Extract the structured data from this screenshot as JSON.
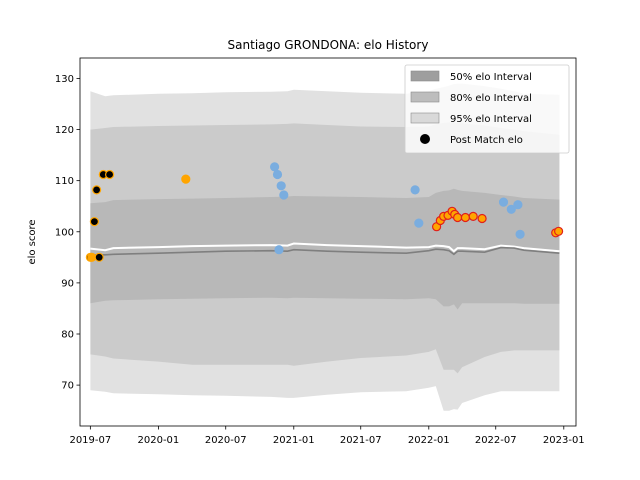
{
  "chart_data": {
    "type": "area",
    "title": "Santiago GRONDONA: elo History",
    "xlabel": "",
    "ylabel": "elo score",
    "ylim": [
      62,
      134
    ],
    "xlim": [
      "2019-06-03",
      "2023-02-03"
    ],
    "x_ticks": [
      "2019-07-01",
      "2020-01-01",
      "2020-07-01",
      "2021-01-01",
      "2021-07-01",
      "2022-01-01",
      "2022-07-01",
      "2023-01-01"
    ],
    "x_tick_labels": [
      "2019-07",
      "2020-01",
      "2020-07",
      "2021-01",
      "2021-07",
      "2022-01",
      "2022-07",
      "2023-01"
    ],
    "y_ticks": [
      70,
      80,
      90,
      100,
      110,
      120,
      130
    ],
    "grid": false,
    "legend_position": "upper right",
    "legend": [
      {
        "label": "50% elo Interval",
        "kind": "patch",
        "color": "#9e9e9e"
      },
      {
        "label": "80% elo Interval",
        "kind": "patch",
        "color": "#bdbdbd"
      },
      {
        "label": "95% elo Interval",
        "kind": "patch",
        "color": "#d9d9d9"
      },
      {
        "label": "Post Match elo",
        "kind": "marker",
        "color": "#000000"
      }
    ],
    "band_dates": [
      "2019-07-01",
      "2019-08-10",
      "2019-09-01",
      "2020-01-01",
      "2020-04-01",
      "2020-07-01",
      "2020-11-01",
      "2020-12-15",
      "2021-01-01",
      "2021-04-01",
      "2021-07-01",
      "2021-11-01",
      "2022-01-01",
      "2022-01-20",
      "2022-02-10",
      "2022-02-25",
      "2022-03-10",
      "2022-03-20",
      "2022-04-01",
      "2022-06-01",
      "2022-07-15",
      "2022-08-20",
      "2022-09-15",
      "2022-12-20"
    ],
    "mean": [
      95.5,
      95.5,
      95.6,
      95.8,
      96.0,
      96.2,
      96.3,
      96.2,
      96.5,
      96.2,
      96.0,
      95.8,
      96.3,
      96.6,
      96.5,
      96.3,
      95.6,
      96.2,
      96.2,
      96.0,
      96.9,
      96.8,
      96.4,
      95.8
    ],
    "mean_upper_edge": [
      96.7,
      96.4,
      96.8,
      97.0,
      97.2,
      97.3,
      97.4,
      97.3,
      97.7,
      97.4,
      97.2,
      96.9,
      97.0,
      97.3,
      97.2,
      97.0,
      96.2,
      96.8,
      96.8,
      96.6,
      97.3,
      97.1,
      96.8,
      96.2
    ],
    "band_50": {
      "lower": [
        86.0,
        86.5,
        86.6,
        86.8,
        86.9,
        87.0,
        87.1,
        87.0,
        87.1,
        87.0,
        86.9,
        86.8,
        87.0,
        86.8,
        85.4,
        85.4,
        85.8,
        84.8,
        86.0,
        86.0,
        86.0,
        86.0,
        85.9,
        85.9
      ],
      "upper": [
        105.6,
        105.8,
        106.2,
        106.4,
        106.5,
        106.6,
        106.8,
        106.9,
        107.0,
        106.9,
        106.8,
        106.6,
        106.8,
        107.6,
        108.0,
        108.1,
        108.4,
        108.2,
        108.0,
        107.6,
        107.2,
        106.9,
        106.6,
        106.3
      ]
    },
    "band_80": {
      "lower": [
        76.0,
        75.6,
        75.2,
        74.6,
        74.0,
        74.0,
        74.0,
        74.0,
        73.8,
        74.6,
        75.3,
        75.8,
        76.5,
        77.0,
        73.0,
        73.0,
        73.0,
        72.3,
        73.5,
        75.5,
        76.5,
        76.8,
        76.8,
        76.8
      ],
      "upper": [
        120.0,
        120.3,
        120.5,
        120.7,
        120.8,
        120.9,
        121.0,
        121.1,
        121.2,
        120.9,
        120.6,
        120.5,
        120.6,
        121.0,
        121.3,
        121.4,
        121.4,
        121.3,
        121.2,
        120.8,
        120.3,
        120.0,
        119.7,
        119.0
      ]
    },
    "band_95": {
      "lower": [
        69.0,
        68.7,
        68.4,
        68.2,
        68.0,
        67.9,
        67.7,
        67.5,
        67.5,
        68.1,
        68.6,
        68.8,
        69.5,
        69.8,
        65.0,
        65.0,
        65.3,
        65.2,
        66.5,
        68.0,
        68.8,
        68.8,
        68.8,
        68.8
      ],
      "upper": [
        127.5,
        126.5,
        126.7,
        127.0,
        127.1,
        127.3,
        127.4,
        127.5,
        127.8,
        127.5,
        127.2,
        127.0,
        127.5,
        128.0,
        128.3,
        128.6,
        128.9,
        129.0,
        129.0,
        128.5,
        128.0,
        127.5,
        127.0,
        126.8
      ]
    },
    "point_styles": {
      "orange": {
        "fill": "#ffa500",
        "stroke": "#ffa500"
      },
      "black_on_orange": {
        "fill": "#000000",
        "stroke": "#ffa500"
      },
      "blue": {
        "fill": "#7aaddf",
        "stroke": "#7aaddf"
      },
      "orange_on_red": {
        "fill": "#ffa500",
        "stroke": "#e0201b"
      }
    },
    "points": [
      {
        "date": "2019-07-01",
        "elo": 95.0,
        "style": "black_on_orange"
      },
      {
        "date": "2019-07-05",
        "elo": 95.0,
        "style": "orange"
      },
      {
        "date": "2019-07-12",
        "elo": 102.0,
        "style": "black_on_orange"
      },
      {
        "date": "2019-07-18",
        "elo": 108.2,
        "style": "black_on_orange"
      },
      {
        "date": "2019-07-25",
        "elo": 95.0,
        "style": "black_on_orange"
      },
      {
        "date": "2019-08-05",
        "elo": 111.2,
        "style": "black_on_orange"
      },
      {
        "date": "2019-08-22",
        "elo": 111.2,
        "style": "black_on_orange"
      },
      {
        "date": "2020-03-15",
        "elo": 110.3,
        "style": "orange"
      },
      {
        "date": "2020-11-10",
        "elo": 112.7,
        "style": "blue"
      },
      {
        "date": "2020-11-18",
        "elo": 111.2,
        "style": "blue"
      },
      {
        "date": "2020-11-22",
        "elo": 96.5,
        "style": "blue"
      },
      {
        "date": "2020-11-28",
        "elo": 109.0,
        "style": "blue"
      },
      {
        "date": "2020-12-05",
        "elo": 107.2,
        "style": "blue"
      },
      {
        "date": "2021-11-25",
        "elo": 108.2,
        "style": "blue"
      },
      {
        "date": "2021-12-05",
        "elo": 101.7,
        "style": "blue"
      },
      {
        "date": "2022-01-22",
        "elo": 101.0,
        "style": "orange_on_red"
      },
      {
        "date": "2022-02-01",
        "elo": 102.2,
        "style": "orange_on_red"
      },
      {
        "date": "2022-02-10",
        "elo": 103.0,
        "style": "orange_on_red"
      },
      {
        "date": "2022-02-22",
        "elo": 103.2,
        "style": "orange_on_red"
      },
      {
        "date": "2022-03-05",
        "elo": 104.0,
        "style": "orange_on_red"
      },
      {
        "date": "2022-03-12",
        "elo": 103.4,
        "style": "orange_on_red"
      },
      {
        "date": "2022-03-20",
        "elo": 102.8,
        "style": "orange_on_red"
      },
      {
        "date": "2022-04-10",
        "elo": 102.8,
        "style": "orange_on_red"
      },
      {
        "date": "2022-05-01",
        "elo": 103.0,
        "style": "orange_on_red"
      },
      {
        "date": "2022-05-25",
        "elo": 102.6,
        "style": "orange_on_red"
      },
      {
        "date": "2022-07-22",
        "elo": 105.8,
        "style": "blue"
      },
      {
        "date": "2022-08-12",
        "elo": 104.4,
        "style": "blue"
      },
      {
        "date": "2022-08-30",
        "elo": 105.3,
        "style": "blue"
      },
      {
        "date": "2022-09-05",
        "elo": 99.5,
        "style": "blue"
      },
      {
        "date": "2022-12-10",
        "elo": 99.8,
        "style": "orange_on_red"
      },
      {
        "date": "2022-12-18",
        "elo": 100.1,
        "style": "orange_on_red"
      }
    ]
  }
}
